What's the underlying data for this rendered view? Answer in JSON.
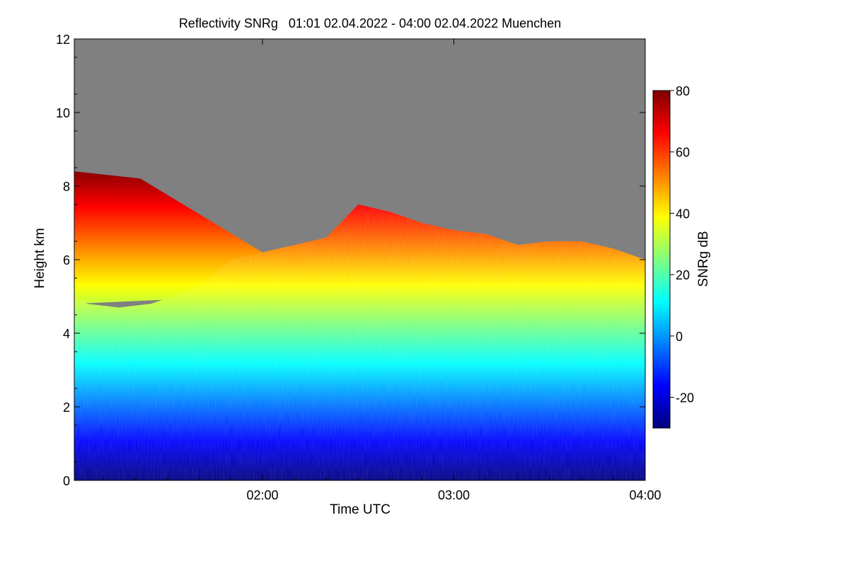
{
  "chart_data": {
    "type": "heatmap",
    "title": "Reflectivity SNRg   01:01 02.04.2022 - 04:00 02.04.2022 Muenchen",
    "xlabel": "Time UTC",
    "ylabel": "Height km",
    "xlim": [
      "01:01",
      "04:00"
    ],
    "ylim": [
      0,
      12
    ],
    "x_ticks": [
      "02:00",
      "03:00",
      "04:00"
    ],
    "y_ticks": [
      0,
      2,
      4,
      6,
      8,
      10,
      12
    ],
    "colorbar": {
      "label": "SNRg dB",
      "range": [
        -30,
        80
      ],
      "ticks": [
        -20,
        0,
        20,
        40,
        60,
        80
      ],
      "colormap": [
        "#00007f",
        "#0000ff",
        "#007fff",
        "#00ffff",
        "#7fff7f",
        "#ffff00",
        "#ff7f00",
        "#ff0000",
        "#7f0000"
      ]
    },
    "no_signal_color": "#808080",
    "cloud_top_km": [
      {
        "time": "01:01",
        "top_km": 5.0
      },
      {
        "time": "01:05",
        "top_km": 4.8
      },
      {
        "time": "01:15",
        "top_km": 4.7
      },
      {
        "time": "01:25",
        "top_km": 4.8
      },
      {
        "time": "01:35",
        "top_km": 5.1
      },
      {
        "time": "01:42",
        "top_km": 5.4
      },
      {
        "time": "01:50",
        "top_km": 6.0
      },
      {
        "time": "02:00",
        "top_km": 6.2
      },
      {
        "time": "02:10",
        "top_km": 6.4
      },
      {
        "time": "02:20",
        "top_km": 6.6
      },
      {
        "time": "02:30",
        "top_km": 7.5
      },
      {
        "time": "02:40",
        "top_km": 7.3
      },
      {
        "time": "02:50",
        "top_km": 7.0
      },
      {
        "time": "03:00",
        "top_km": 6.8
      },
      {
        "time": "03:10",
        "top_km": 6.7
      },
      {
        "time": "03:20",
        "top_km": 6.4
      },
      {
        "time": "03:30",
        "top_km": 6.5
      },
      {
        "time": "03:40",
        "top_km": 6.5
      },
      {
        "time": "03:50",
        "top_km": 6.3
      },
      {
        "time": "04:00",
        "top_km": 6.0
      }
    ],
    "upper_cloud_layer": {
      "time_range": [
        "01:01",
        "02:00"
      ],
      "base_km": 4.8,
      "top_km": 8.4
    }
  }
}
